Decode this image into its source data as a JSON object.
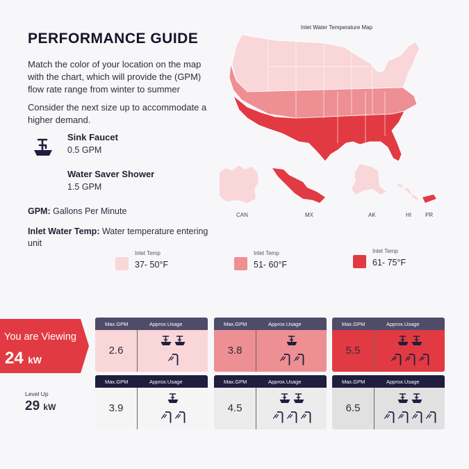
{
  "header": {
    "title": "PERFORMANCE GUIDE",
    "paragraph1": "Match the color of your location on the map with the chart, which will provide the (GPM) flow rate range from winter to summer",
    "paragraph2": "Consider the next size up to accommodate a higher demand."
  },
  "fixtures": [
    {
      "name": "Sink Faucet",
      "value": "0.5 GPM",
      "icon": "sink-faucet-icon"
    },
    {
      "name": "Water Saver Shower",
      "value": "1.5 GPM",
      "icon": "shower-icon"
    }
  ],
  "definitions": [
    {
      "term": "GPM:",
      "text": " Gallons Per Minute"
    },
    {
      "term": "Inlet Water Temp:",
      "text": " Water temperature entering unit"
    }
  ],
  "map": {
    "title": "Inlet Water Temperature Map",
    "insets": [
      "CAN",
      "MX",
      "AK",
      "HI",
      "PR"
    ]
  },
  "legend": [
    {
      "label": "Inlet Temp",
      "value": "37- 50°F",
      "color": "#f9d6d8"
    },
    {
      "label": "Inlet Temp",
      "value": "51- 60°F",
      "color": "#ee8f93"
    },
    {
      "label": "Inlet Temp",
      "value": "61- 75°F",
      "color": "#e23a42"
    }
  ],
  "current": {
    "label": "You are Viewing",
    "kw": "24",
    "unit": "kW"
  },
  "levelup": {
    "label": "Level Up",
    "kw": "29",
    "unit": "kW"
  },
  "cards_header": {
    "col1": "Max.GPM",
    "col2": "Approx.Usage"
  },
  "cards": [
    {
      "gpm": "2.6",
      "sinks": 2,
      "showers": 1
    },
    {
      "gpm": "3.8",
      "sinks": 1,
      "showers": 2
    },
    {
      "gpm": "5.5",
      "sinks": 2,
      "showers": 3
    },
    {
      "gpm": "3.9",
      "sinks": 1,
      "showers": 2
    },
    {
      "gpm": "4.5",
      "sinks": 2,
      "showers": 3
    },
    {
      "gpm": "6.5",
      "sinks": 2,
      "showers": 4
    }
  ],
  "colors": {
    "accent": "#e23a42",
    "header_top": "#4f4c6a",
    "header_bottom": "#1f1e3e",
    "light": "#f9d6d8",
    "medium": "#ee8f93",
    "dark": "#e23a42",
    "gray1": "#f5f5f6",
    "gray2": "#ececed",
    "gray3": "#e1e1e2"
  }
}
